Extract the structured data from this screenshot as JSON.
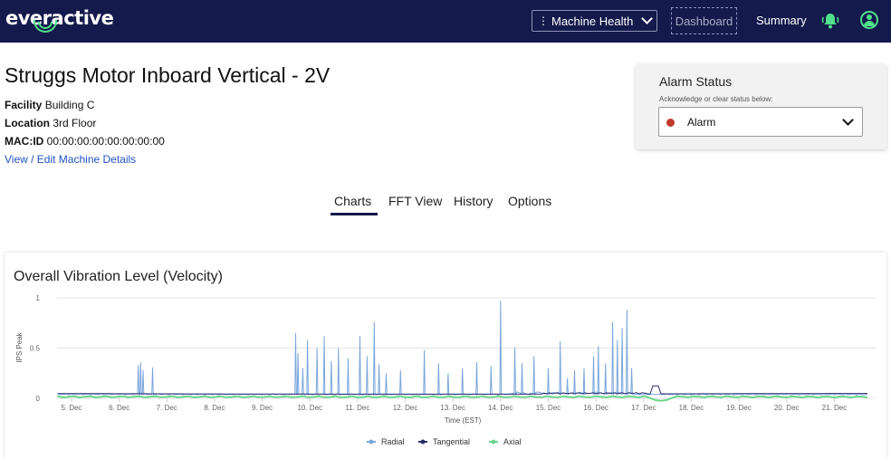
{
  "app": {
    "brand": "everactive"
  },
  "nav": {
    "machine_select": "Machine Health",
    "dashboard": "Dashboard",
    "summary": "Summary"
  },
  "machine": {
    "title": "Struggs Motor Inboard Vertical - 2V",
    "facility_label": "Facility",
    "facility_value": "Building C",
    "location_label": "Location",
    "location_value": "3rd Floor",
    "macid_label": "MAC:ID",
    "macid_value": "00:00:00:00:00:00:00:00",
    "edit_link": "View / Edit Machine Details"
  },
  "alarm": {
    "title": "Alarm Status",
    "hint": "Acknowledge or clear status below:",
    "value": "Alarm",
    "status_color": "#c0392b"
  },
  "tabs": [
    "Charts",
    "FFT View",
    "History",
    "Options"
  ],
  "active_tab": "Charts",
  "chart_data": {
    "type": "line",
    "title": "Overall Vibration Level (Velocity)",
    "xlabel": "Time (EST)",
    "ylabel": "IPS Peak",
    "ylim": [
      0,
      1
    ],
    "yticks": [
      "1",
      "0.5",
      "0"
    ],
    "categories": [
      "5. Dec",
      "6. Dec",
      "7. Dec",
      "8. Dec",
      "9. Dec",
      "10. Dec",
      "11. Dec",
      "12. Dec",
      "13. Dec",
      "14. Dec",
      "15. Dec",
      "16. Dec",
      "17. Dec",
      "18. Dec",
      "19. Dec",
      "20. Dec",
      "21. Dec"
    ],
    "grid": true,
    "legend_position": "bottom",
    "series": [
      {
        "name": "Radial",
        "color": "#7aa6dc",
        "baseline": 0.04,
        "peaks": [
          [
            6.4,
            0.33
          ],
          [
            6.45,
            0.36
          ],
          [
            6.5,
            0.28
          ],
          [
            6.7,
            0.31
          ],
          [
            9.7,
            0.65
          ],
          [
            9.75,
            0.45
          ],
          [
            9.85,
            0.3
          ],
          [
            9.95,
            0.58
          ],
          [
            10.15,
            0.5
          ],
          [
            10.3,
            0.62
          ],
          [
            10.45,
            0.37
          ],
          [
            10.6,
            0.5
          ],
          [
            10.8,
            0.4
          ],
          [
            11.05,
            0.62
          ],
          [
            11.2,
            0.42
          ],
          [
            11.35,
            0.76
          ],
          [
            11.45,
            0.34
          ],
          [
            11.6,
            0.25
          ],
          [
            11.9,
            0.28
          ],
          [
            12.4,
            0.48
          ],
          [
            12.7,
            0.35
          ],
          [
            12.9,
            0.25
          ],
          [
            13.2,
            0.3
          ],
          [
            13.5,
            0.36
          ],
          [
            13.8,
            0.32
          ],
          [
            14.0,
            0.97
          ],
          [
            14.3,
            0.51
          ],
          [
            14.45,
            0.35
          ],
          [
            14.7,
            0.42
          ],
          [
            15.0,
            0.3
          ],
          [
            15.25,
            0.57
          ],
          [
            15.4,
            0.2
          ],
          [
            15.55,
            0.28
          ],
          [
            15.75,
            0.3
          ],
          [
            15.95,
            0.42
          ],
          [
            16.05,
            0.52
          ],
          [
            16.2,
            0.35
          ],
          [
            16.35,
            0.76
          ],
          [
            16.45,
            0.58
          ],
          [
            16.55,
            0.7
          ],
          [
            16.65,
            0.88
          ],
          [
            16.75,
            0.3
          ]
        ]
      },
      {
        "name": "Tangential",
        "color": "#2b2d6e",
        "baseline": 0.045
      },
      {
        "name": "Axial",
        "color": "#6cd68a",
        "baseline": 0.015
      }
    ]
  }
}
